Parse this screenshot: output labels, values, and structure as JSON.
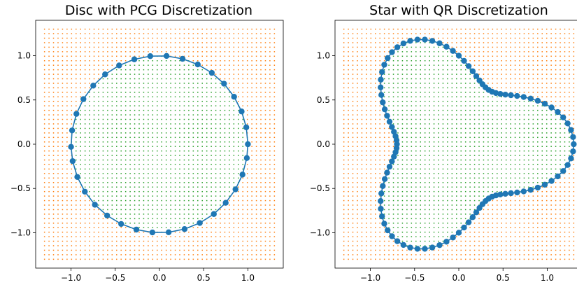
{
  "chart_data": [
    {
      "type": "scatter",
      "title": "Disc with PCG Discretization",
      "xlabel": "",
      "ylabel": "",
      "xlim": [
        -1.4,
        1.4
      ],
      "ylim": [
        -1.4,
        1.4
      ],
      "xticks": [
        -1.0,
        -0.5,
        0.0,
        0.5,
        1.0
      ],
      "yticks": [
        -1.0,
        -0.5,
        0.0,
        0.5,
        1.0
      ],
      "xtick_labels": [
        "−1.0",
        "−0.5",
        "0.0",
        "0.5",
        "1.0"
      ],
      "ytick_labels": [
        "−1.0",
        "−0.5",
        "0.0",
        "0.5",
        "1.0"
      ],
      "grid": false,
      "legend": "none",
      "boundary": {
        "shape": "circle",
        "radius": 1.0,
        "x": [
          1.0,
          0.982,
          0.929,
          0.844,
          0.73,
          0.592,
          0.433,
          0.261,
          0.08,
          -0.104,
          -0.284,
          -0.456,
          -0.615,
          -0.749,
          -0.86,
          -0.939,
          -0.988,
          -1.0,
          -0.982,
          -0.929,
          -0.844,
          -0.73,
          -0.592,
          -0.433,
          -0.261,
          -0.08,
          0.104,
          0.284,
          0.456,
          0.615,
          0.749,
          0.86,
          0.939,
          0.988
        ],
        "y": [
          0.0,
          0.191,
          0.37,
          0.536,
          0.684,
          0.806,
          0.901,
          0.965,
          0.997,
          0.995,
          0.959,
          0.89,
          0.789,
          0.662,
          0.51,
          0.343,
          0.156,
          -0.03,
          -0.191,
          -0.37,
          -0.536,
          -0.684,
          -0.806,
          -0.901,
          -0.965,
          -0.997,
          -0.995,
          -0.959,
          -0.89,
          -0.789,
          -0.662,
          -0.51,
          -0.343,
          -0.156
        ],
        "color": "#1f77b4"
      },
      "grid_points": {
        "min": -1.3,
        "max": 1.3,
        "count": 52,
        "outside_color": "#ff7f0e",
        "inside_color": "#2ca02c"
      }
    },
    {
      "type": "scatter",
      "title": "Star with QR Discretization",
      "xlabel": "",
      "ylabel": "",
      "xlim": [
        -1.4,
        1.4
      ],
      "ylim": [
        -1.4,
        1.4
      ],
      "xticks": [
        -1.0,
        -0.5,
        0.0,
        0.5,
        1.0
      ],
      "yticks": [
        -1.0,
        -0.5,
        0.0,
        0.5,
        1.0
      ],
      "xtick_labels": [
        "−1.0",
        "−0.5",
        "0.0",
        "0.5",
        "1.0"
      ],
      "ytick_labels": [
        "−1.0",
        "−0.5",
        "0.0",
        "0.5",
        "1.0"
      ],
      "grid": false,
      "legend": "none",
      "boundary": {
        "shape": "star",
        "radial_function": {
          "base": 1.0,
          "amplitude": 0.3,
          "lobes": 3
        },
        "n_points": 100,
        "color": "#1f77b4"
      },
      "grid_points": {
        "min": -1.3,
        "max": 1.3,
        "count": 52,
        "outside_color": "#ff7f0e",
        "inside_color": "#2ca02c"
      }
    }
  ]
}
